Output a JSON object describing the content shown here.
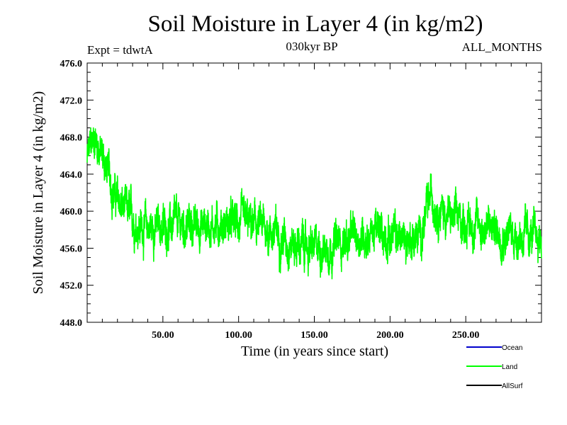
{
  "chart_data": {
    "type": "line",
    "title": "Soil Moisture in Layer 4 (in kg/m2)",
    "subtitle": "030kyr BP",
    "experiment_label": "Expt = tdwtA",
    "period_label": "ALL_MONTHS",
    "xlabel": "Time (in years since start)",
    "ylabel": "Soil Moisture in Layer 4 (in kg/m2)",
    "xlim": [
      0,
      300
    ],
    "ylim": [
      448,
      476
    ],
    "x_ticks": [
      50,
      100,
      150,
      200,
      250
    ],
    "x_tick_labels": [
      "50.00",
      "100.00",
      "150.00",
      "200.00",
      "250.00"
    ],
    "y_ticks": [
      448,
      452,
      456,
      460,
      464,
      468,
      472,
      476
    ],
    "y_tick_labels": [
      "448.0",
      "452.0",
      "456.0",
      "460.0",
      "464.0",
      "468.0",
      "472.0",
      "476.0"
    ],
    "trend_control_points": {
      "x": [
        0,
        5,
        12,
        20,
        30,
        40,
        60,
        80,
        100,
        120,
        140,
        150,
        170,
        190,
        210,
        220,
        227,
        240,
        260,
        280,
        300
      ],
      "y": [
        465.5,
        468.2,
        465.0,
        461.0,
        459.0,
        458.2,
        458.4,
        458.6,
        458.6,
        458.0,
        456.3,
        455.8,
        456.8,
        457.8,
        457.0,
        457.2,
        461.5,
        459.2,
        458.4,
        457.6,
        457.0
      ]
    },
    "noise_amplitude": 2.3,
    "series": [
      {
        "name": "Ocean",
        "color": "#0000cc",
        "values": []
      },
      {
        "name": "Land",
        "color": "#00ff00",
        "values": "dense monthly series, ~3600 points following trend_control_points"
      },
      {
        "name": "AllSurf",
        "color": "#000000",
        "values": []
      }
    ],
    "legend": [
      "Ocean",
      "Land",
      "AllSurf"
    ],
    "legend_position": "bottom-right",
    "grid": false
  }
}
